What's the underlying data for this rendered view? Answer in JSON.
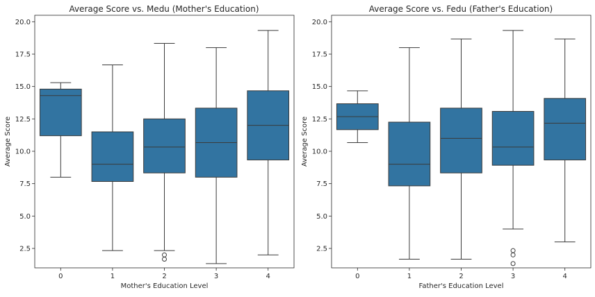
{
  "chart_data": [
    {
      "type": "box",
      "title": "Average Score vs. Medu (Mother's Education)",
      "xlabel": "Mother's Education Level",
      "ylabel": "Average Score",
      "categories": [
        "0",
        "1",
        "2",
        "3",
        "4"
      ],
      "ylim": [
        1.0,
        20.5
      ],
      "yticks": [
        "2.5",
        "5.0",
        "7.5",
        "10.0",
        "12.5",
        "15.0",
        "17.5",
        "20.0"
      ],
      "grid": false,
      "box_color": "#3274a1",
      "boxes": [
        {
          "whislo": 8.0,
          "q1": 11.2,
          "med": 14.3,
          "q3": 14.8,
          "whishi": 15.3,
          "fliers": []
        },
        {
          "whislo": 2.33,
          "q1": 7.67,
          "med": 9.0,
          "q3": 11.5,
          "whishi": 16.67,
          "fliers": []
        },
        {
          "whislo": 2.33,
          "q1": 8.33,
          "med": 10.33,
          "q3": 12.5,
          "whishi": 18.33,
          "fliers": [
            2.0,
            1.67
          ]
        },
        {
          "whislo": 1.33,
          "q1": 8.0,
          "med": 10.67,
          "q3": 13.33,
          "whishi": 18.0,
          "fliers": []
        },
        {
          "whislo": 2.0,
          "q1": 9.33,
          "med": 12.0,
          "q3": 14.67,
          "whishi": 19.33,
          "fliers": []
        }
      ]
    },
    {
      "type": "box",
      "title": "Average Score vs. Fedu (Father's Education)",
      "xlabel": "Father's Education Level",
      "ylabel": "Average Score",
      "categories": [
        "0",
        "1",
        "2",
        "3",
        "4"
      ],
      "ylim": [
        1.0,
        20.5
      ],
      "yticks": [
        "2.5",
        "5.0",
        "7.5",
        "10.0",
        "12.5",
        "15.0",
        "17.5",
        "20.0"
      ],
      "grid": false,
      "box_color": "#3274a1",
      "boxes": [
        {
          "whislo": 10.67,
          "q1": 11.67,
          "med": 12.67,
          "q3": 13.67,
          "whishi": 14.67,
          "fliers": []
        },
        {
          "whislo": 1.67,
          "q1": 7.33,
          "med": 9.0,
          "q3": 12.25,
          "whishi": 18.0,
          "fliers": []
        },
        {
          "whislo": 1.67,
          "q1": 8.33,
          "med": 11.0,
          "q3": 13.33,
          "whishi": 18.67,
          "fliers": []
        },
        {
          "whislo": 4.0,
          "q1": 8.92,
          "med": 10.33,
          "q3": 13.08,
          "whishi": 19.33,
          "fliers": [
            2.33,
            2.0,
            1.33
          ]
        },
        {
          "whislo": 3.0,
          "q1": 9.33,
          "med": 12.17,
          "q3": 14.08,
          "whishi": 18.67,
          "fliers": []
        }
      ]
    }
  ]
}
